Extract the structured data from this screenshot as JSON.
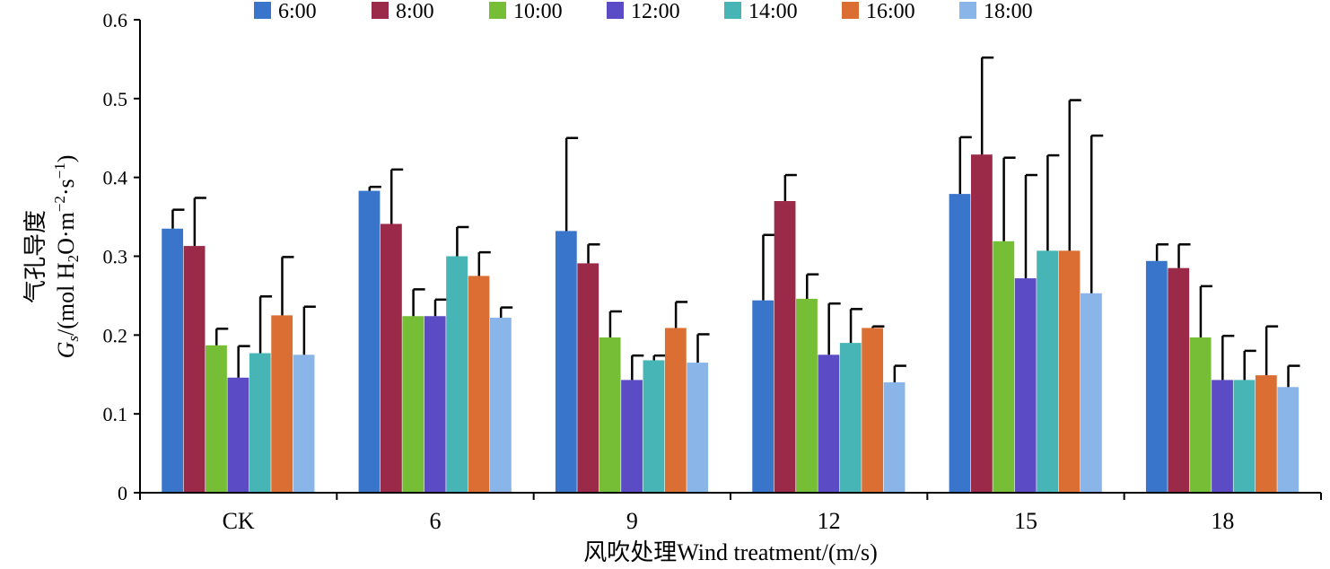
{
  "chart_data": {
    "type": "bar",
    "categories": [
      "CK",
      "6",
      "9",
      "12",
      "15",
      "18"
    ],
    "xlabel": "风吹处理Wind treatment/(m/s)",
    "ylabel_cn": "气孔导度",
    "ylabel_symbol": "G",
    "ylabel_subscript": "s",
    "ylabel_units_prefix": "/(mol H",
    "ylabel_units_h2o_sub": "2",
    "ylabel_units_mid": "O·m",
    "ylabel_units_exp1": "−2",
    "ylabel_units_s": "·s",
    "ylabel_units_exp2": "−1",
    "ylabel_units_close": ")",
    "ylim": [
      0,
      0.6
    ],
    "yticks": [
      "0",
      "0.1",
      "0.2",
      "0.3",
      "0.4",
      "0.5",
      "0.6"
    ],
    "grid": false,
    "legend_position": "top",
    "series": [
      {
        "name": "6:00",
        "color": "#3A75CC",
        "values": [
          0.335,
          0.383,
          0.332,
          0.244,
          0.379,
          0.294
        ],
        "errors": [
          0.024,
          0.005,
          0.118,
          0.083,
          0.072,
          0.021
        ]
      },
      {
        "name": "8:00",
        "color": "#9B2A48",
        "values": [
          0.313,
          0.341,
          0.291,
          0.37,
          0.429,
          0.285
        ],
        "errors": [
          0.061,
          0.069,
          0.024,
          0.033,
          0.123,
          0.03
        ]
      },
      {
        "name": "10:00",
        "color": "#76BE35",
        "values": [
          0.187,
          0.224,
          0.197,
          0.246,
          0.319,
          0.197
        ],
        "errors": [
          0.021,
          0.034,
          0.033,
          0.031,
          0.106,
          0.065
        ]
      },
      {
        "name": "12:00",
        "color": "#5B4CC6",
        "values": [
          0.146,
          0.224,
          0.143,
          0.175,
          0.272,
          0.143
        ],
        "errors": [
          0.04,
          0.021,
          0.031,
          0.065,
          0.131,
          0.056
        ]
      },
      {
        "name": "14:00",
        "color": "#47B5B5",
        "values": [
          0.177,
          0.3,
          0.168,
          0.19,
          0.307,
          0.143
        ],
        "errors": [
          0.072,
          0.037,
          0.006,
          0.043,
          0.121,
          0.037
        ]
      },
      {
        "name": "16:00",
        "color": "#DB6E33",
        "values": [
          0.225,
          0.275,
          0.209,
          0.209,
          0.307,
          0.149
        ],
        "errors": [
          0.074,
          0.03,
          0.033,
          0.002,
          0.191,
          0.062
        ]
      },
      {
        "name": "18:00",
        "color": "#89B5E8",
        "values": [
          0.175,
          0.222,
          0.165,
          0.14,
          0.253,
          0.134
        ],
        "errors": [
          0.061,
          0.013,
          0.036,
          0.021,
          0.2,
          0.027
        ]
      }
    ]
  }
}
